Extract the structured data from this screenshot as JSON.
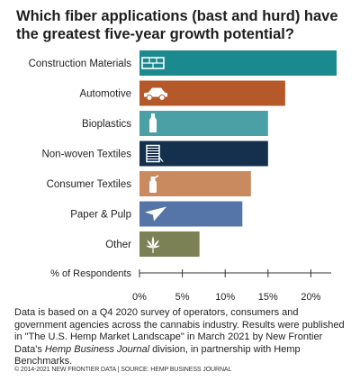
{
  "title": "Which fiber applications (bast and hurd) have the greatest five-year growth potential?",
  "chart_data": {
    "type": "bar",
    "orientation": "horizontal",
    "categories": [
      "Construction Materials",
      "Automotive",
      "Bioplastics",
      "Non-woven Textiles",
      "Consumer Textiles",
      "Paper & Pulp",
      "Other"
    ],
    "values": [
      23,
      17,
      15,
      15,
      13,
      12,
      7
    ],
    "colors": [
      "#1a8a8f",
      "#b5582a",
      "#4aa0a4",
      "#14304d",
      "#c98a5f",
      "#5575a8",
      "#7b8055"
    ],
    "icons": [
      "brick-icon",
      "car-icon",
      "bottle-icon",
      "fabric-roll-icon",
      "spray-bottle-icon",
      "paper-plane-icon",
      "cannabis-leaf-icon"
    ],
    "xlabel": "% of Respondents",
    "xlim": [
      0,
      23
    ],
    "ticks": [
      0,
      5,
      10,
      15,
      20
    ],
    "tick_labels": [
      "0%",
      "5%",
      "10%",
      "15%",
      "20%"
    ],
    "grid": false
  },
  "footnote": {
    "line1": "Data is based on a Q4 2020 survey of operators, consumers and government agencies across the cannabis industry. Results were published in \"The U.S. Hemp Market Landscape\" in March 2021 by New Frontier Data's ",
    "journal": "Hemp Business Journal",
    "line2": " division, in partnership with Hemp Benchmarks."
  },
  "copyright": "© 2014-2021 NEW FRONTIER DATA | SOURCE: HEMP BUSINESS JOURNAL"
}
